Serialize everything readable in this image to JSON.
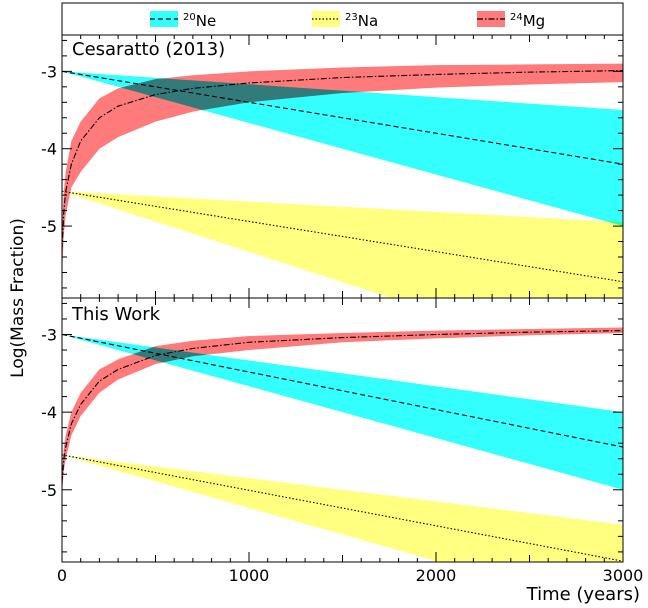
{
  "legend": {
    "entries": [
      {
        "iso_mass": "20",
        "element": "Ne",
        "color": "#33ffff",
        "line_style": "dashed"
      },
      {
        "iso_mass": "23",
        "element": "Na",
        "color": "#ffff80",
        "line_style": "dotted"
      },
      {
        "iso_mass": "24",
        "element": "Mg",
        "color": "#ff7a7a",
        "line_style": "dash-dot"
      }
    ]
  },
  "colors": {
    "ne_band": "#33ffff",
    "na_band": "#ffff80",
    "mg_band": "#ff7a7a",
    "overlap_ne_mg": "#7f7f7f",
    "overlap_ne_na": "#99ff80"
  },
  "chart_data": {
    "type": "area",
    "ylabel": "Log(Mass Fraction)",
    "xlabel": "Time (years)",
    "xlim": [
      0,
      3000
    ],
    "ylim": [
      -5.93,
      -2.53
    ],
    "x_ticks": [
      "0",
      "1000",
      "2000",
      "3000"
    ],
    "y_ticks": [
      "-3",
      "-4",
      "-5"
    ],
    "y_tick_values": [
      -3,
      -4,
      -5
    ],
    "x_tick_values": [
      0,
      1000,
      2000,
      3000
    ],
    "panels": [
      {
        "title": "Cesaratto (2013)",
        "series": [
          {
            "name": "Ne",
            "x": [
              0,
              3000
            ],
            "center": [
              -3.0,
              -4.2
            ],
            "lower": [
              -3.0,
              -5.0
            ],
            "upper": [
              -3.0,
              -3.5
            ]
          },
          {
            "name": "Na",
            "x": [
              0,
              3000
            ],
            "center": [
              -4.55,
              -5.72
            ],
            "lower": [
              -4.55,
              -6.9
            ],
            "upper": [
              -4.55,
              -4.95
            ]
          },
          {
            "name": "Mg",
            "x": [
              0,
              10,
              20,
              50,
              100,
              200,
              300,
              500,
              700,
              1000,
              1500,
              2000,
              2500,
              3000
            ],
            "center": [
              -5.3,
              -4.8,
              -4.55,
              -4.2,
              -3.9,
              -3.6,
              -3.45,
              -3.3,
              -3.22,
              -3.15,
              -3.08,
              -3.04,
              -3.01,
              -2.99
            ],
            "lower": [
              -5.6,
              -5.1,
              -4.85,
              -4.5,
              -4.3,
              -4.0,
              -3.85,
              -3.65,
              -3.52,
              -3.4,
              -3.28,
              -3.21,
              -3.17,
              -3.14
            ],
            "upper": [
              -5.0,
              -4.55,
              -4.3,
              -3.9,
              -3.65,
              -3.35,
              -3.22,
              -3.1,
              -3.05,
              -3.0,
              -2.95,
              -2.92,
              -2.91,
              -2.9
            ]
          }
        ]
      },
      {
        "title": "This Work",
        "series": [
          {
            "name": "Ne",
            "x": [
              0,
              3000
            ],
            "center": [
              -3.0,
              -4.45
            ],
            "lower": [
              -3.0,
              -5.0
            ],
            "upper": [
              -3.0,
              -4.0
            ]
          },
          {
            "name": "Na",
            "x": [
              0,
              3000
            ],
            "center": [
              -4.55,
              -5.92
            ],
            "lower": [
              -4.55,
              -6.6
            ],
            "upper": [
              -4.55,
              -5.45
            ]
          },
          {
            "name": "Mg",
            "x": [
              0,
              10,
              20,
              50,
              100,
              200,
              300,
              500,
              700,
              1000,
              1500,
              2000,
              2500,
              3000
            ],
            "center": [
              -4.9,
              -4.6,
              -4.45,
              -4.15,
              -3.9,
              -3.6,
              -3.45,
              -3.27,
              -3.18,
              -3.1,
              -3.04,
              -3.0,
              -2.97,
              -2.95
            ],
            "lower": [
              -5.05,
              -4.75,
              -4.6,
              -4.3,
              -4.05,
              -3.75,
              -3.58,
              -3.38,
              -3.28,
              -3.2,
              -3.1,
              -3.05,
              -3.01,
              -2.98
            ],
            "upper": [
              -4.75,
              -4.45,
              -4.3,
              -4.0,
              -3.75,
              -3.45,
              -3.32,
              -3.15,
              -3.08,
              -3.02,
              -2.98,
              -2.95,
              -2.93,
              -2.91
            ]
          }
        ]
      }
    ]
  }
}
